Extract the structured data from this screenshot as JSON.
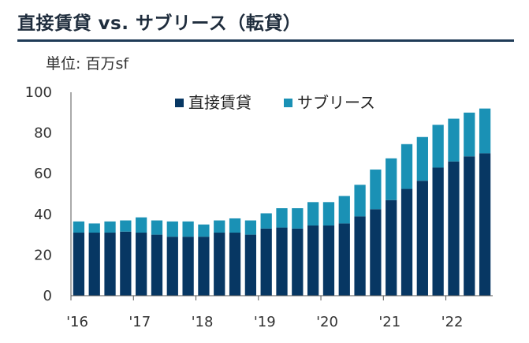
{
  "header": {
    "title": "直接賃貸 vs. サブリース（転貸）",
    "unit": "単位: 百万sf"
  },
  "colors": {
    "direct": "#073763",
    "sublease": "#1a91b5",
    "title_rule": "#1f3b57",
    "axis": "#555555"
  },
  "chart_data": {
    "type": "bar",
    "stacked": true,
    "ylim": [
      0,
      100
    ],
    "yticks": [
      0,
      20,
      40,
      60,
      80,
      100
    ],
    "grid": false,
    "legend_position": "top-center",
    "x_period_labels": [
      "'16",
      "'17",
      "'18",
      "'19",
      "'20",
      "'21",
      "'22"
    ],
    "categories": [
      "2016Q1",
      "2016Q2",
      "2016Q3",
      "2016Q4",
      "2017Q1",
      "2017Q2",
      "2017Q3",
      "2017Q4",
      "2018Q1",
      "2018Q2",
      "2018Q3",
      "2018Q4",
      "2019Q1",
      "2019Q2",
      "2019Q3",
      "2019Q4",
      "2020Q1",
      "2020Q2",
      "2020Q3",
      "2020Q4",
      "2021Q1",
      "2021Q2",
      "2021Q3",
      "2021Q4",
      "2022Q1",
      "2022Q2",
      "2022Q3"
    ],
    "series": [
      {
        "name": "直接賃貸",
        "values": [
          31,
          31,
          31,
          31.5,
          31,
          30,
          29,
          29,
          29,
          31,
          31,
          30,
          33,
          33.5,
          33,
          34.5,
          34.5,
          35.5,
          39,
          42.5,
          47,
          52.5,
          56.5,
          63,
          66,
          68.5,
          70
        ]
      },
      {
        "name": "サブリース",
        "values": [
          5.5,
          4.5,
          5.5,
          5.5,
          7.5,
          7,
          7.5,
          7.5,
          6,
          6,
          7,
          7,
          7.5,
          9.5,
          10,
          11.5,
          11.5,
          13.5,
          15.5,
          19.5,
          20.5,
          22,
          21.5,
          21,
          21,
          21.5,
          22
        ]
      }
    ]
  }
}
